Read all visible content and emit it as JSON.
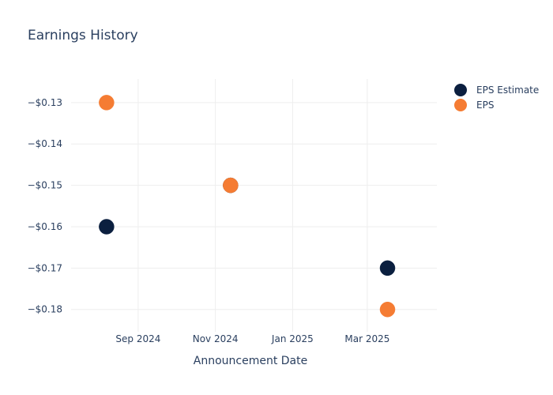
{
  "chart_data": {
    "type": "scatter",
    "title": "Earnings History",
    "xlabel": "Announcement Date",
    "ylabel": "",
    "xlim": [
      "2024-07-10",
      "2025-04-25"
    ],
    "ylim": [
      -0.1854,
      -0.1243
    ],
    "x_ticks": [
      {
        "value": "2024-09-01",
        "label": "Sep 2024"
      },
      {
        "value": "2024-11-01",
        "label": "Nov 2024"
      },
      {
        "value": "2025-01-01",
        "label": "Jan 2025"
      },
      {
        "value": "2025-03-01",
        "label": "Mar 2025"
      }
    ],
    "y_ticks": [
      {
        "value": -0.13,
        "label": "−$0.13"
      },
      {
        "value": -0.14,
        "label": "−$0.14"
      },
      {
        "value": -0.15,
        "label": "−$0.15"
      },
      {
        "value": -0.16,
        "label": "−$0.16"
      },
      {
        "value": -0.17,
        "label": "−$0.17"
      },
      {
        "value": -0.18,
        "label": "−$0.18"
      }
    ],
    "grid": true,
    "legend_position": "top-right",
    "series": [
      {
        "name": "EPS Estimate",
        "color": "#0b1f3f",
        "points": [
          {
            "x": "2024-08-07",
            "y": -0.16
          },
          {
            "x": "2024-11-13",
            "y": -0.15
          },
          {
            "x": "2025-03-17",
            "y": -0.17
          }
        ]
      },
      {
        "name": "EPS",
        "color": "#f57c33",
        "points": [
          {
            "x": "2024-08-07",
            "y": -0.13
          },
          {
            "x": "2024-11-13",
            "y": -0.15
          },
          {
            "x": "2025-03-17",
            "y": -0.18
          }
        ]
      }
    ]
  }
}
